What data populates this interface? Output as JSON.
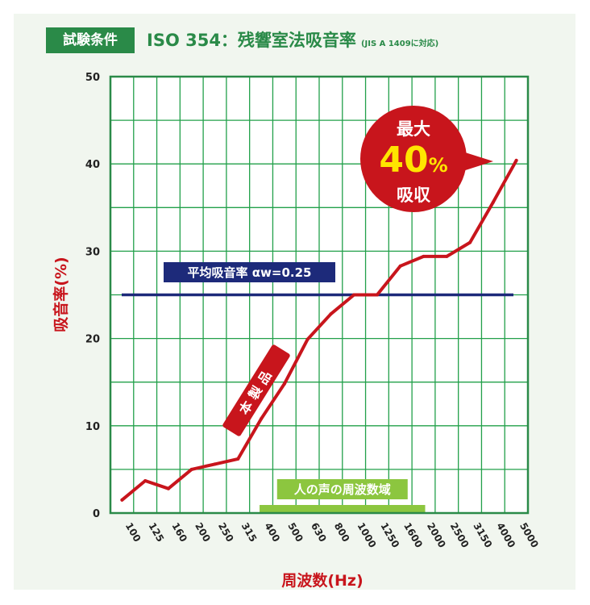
{
  "header": {
    "condition_label": "試験条件",
    "standard_title": "ISO 354：残響室法吸音率",
    "standard_note": "(JIS A 1409に対応)"
  },
  "colors": {
    "accent_green": "#2a8a48",
    "grid_green": "#22a04a",
    "product_red": "#c8151c",
    "average_navy": "#1d2a7a",
    "voice_band": "#8cc63f",
    "panel_bg": "#f1f6ef"
  },
  "chart_data": {
    "type": "line",
    "ylabel": "吸音率(%)",
    "xlabel": "周波数(Hz)",
    "ylim": [
      0,
      50
    ],
    "y_ticks": [
      "0",
      "10",
      "20",
      "30",
      "40",
      "50"
    ],
    "categories": [
      "100",
      "125",
      "160",
      "200",
      "250",
      "315",
      "400",
      "500",
      "630",
      "800",
      "1000",
      "1250",
      "1600",
      "2000",
      "2500",
      "3150",
      "4000",
      "5000"
    ],
    "grid": true,
    "series": [
      {
        "name": "本製品",
        "values": [
          1.5,
          3.7,
          2.8,
          5.0,
          5.6,
          6.2,
          10.8,
          14.8,
          19.9,
          22.8,
          25.0,
          25.0,
          28.3,
          29.4,
          29.4,
          31.0,
          35.6,
          40.4
        ]
      }
    ],
    "average_line": {
      "label": "平均吸音率 αw=0.25",
      "value": 25
    },
    "voice_band": {
      "label": "人の声の周波数域",
      "from": "400",
      "to": "2000"
    },
    "max_callout": {
      "line1": "最大",
      "value": "40",
      "unit": "%",
      "line3": "吸収"
    }
  }
}
